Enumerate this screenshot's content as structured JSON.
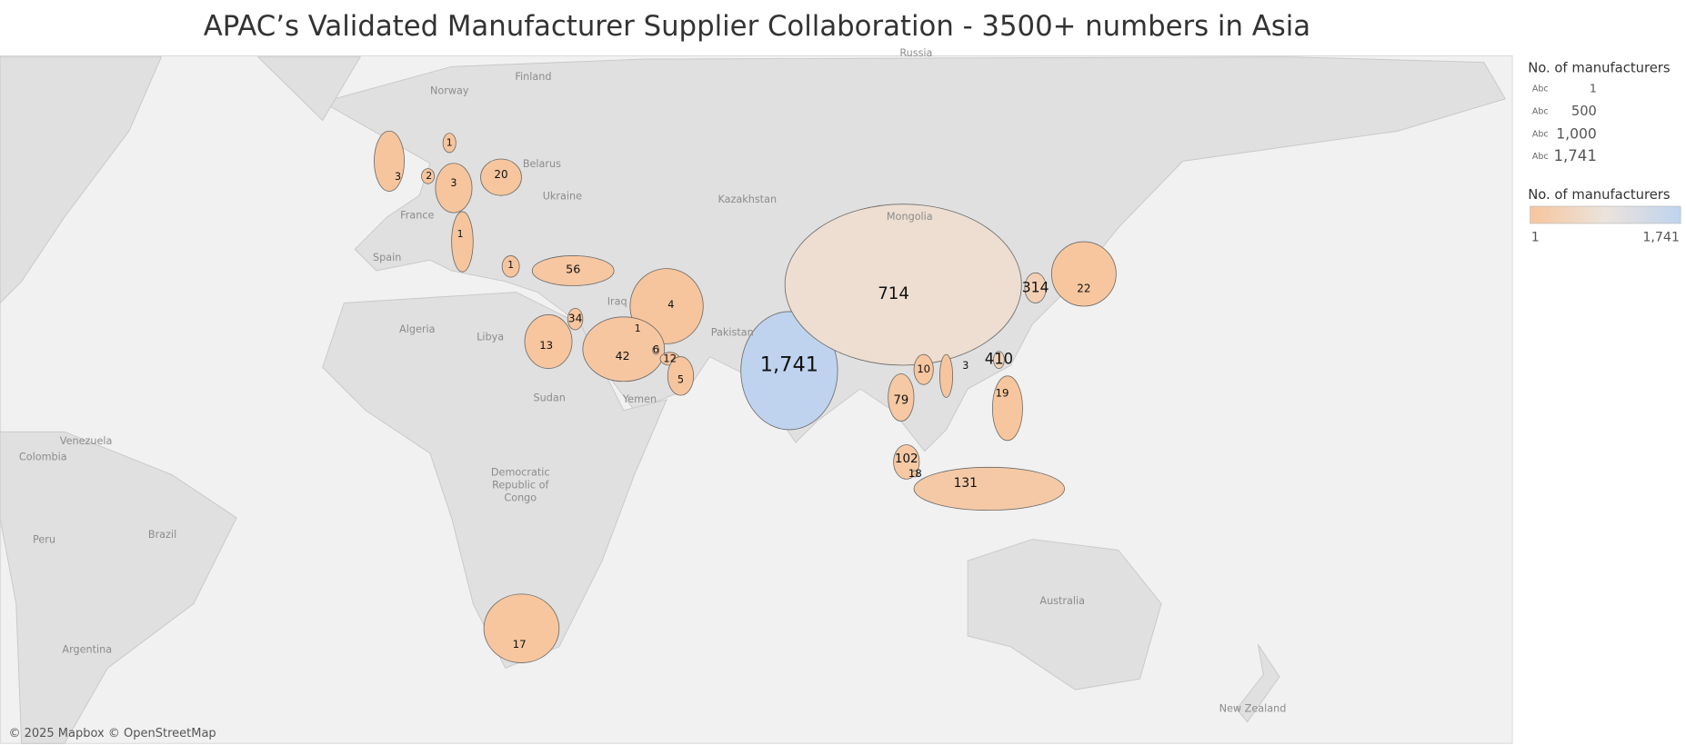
{
  "title": "APAC’s Validated Manufacturer Supplier Collaboration - 3500+ numbers in Asia",
  "map": {
    "type": "choropleth",
    "values": [
      3,
      1,
      2,
      3,
      20,
      1,
      1,
      56,
      34,
      4,
      1,
      13,
      42,
      6,
      12,
      5,
      1741,
      714,
      314,
      22,
      410,
      10,
      3,
      79,
      19,
      102,
      18,
      131,
      17
    ],
    "value_labels": [
      "3",
      "1",
      "2",
      "3",
      "20",
      "1",
      "1",
      "56",
      "34",
      "4",
      "1",
      "13",
      "42",
      "6",
      "12",
      "5",
      "1,741",
      "714",
      "314",
      "22",
      "410",
      "10",
      "3",
      "79",
      "19",
      "102",
      "18",
      "131",
      "17"
    ],
    "basemap_labels": [
      "Russia",
      "Finland",
      "Norway",
      "Belarus",
      "Ukraine",
      "Kazakhstan",
      "Mongolia",
      "France",
      "Spain",
      "Algeria",
      "Libya",
      "Iraq",
      "Pakistan",
      "Sudan",
      "Yemen",
      "Venezuela",
      "Colombia",
      "Democratic Republic of Congo",
      "Brazil",
      "Peru",
      "Argentina",
      "Australia",
      "New Zealand"
    ],
    "attribution": "© 2025 Mapbox © OpenStreetMap"
  },
  "legend": {
    "size": {
      "title": "No. of manufacturers",
      "sample": "Abc",
      "values": [
        1,
        500,
        1000,
        1741
      ],
      "labels": [
        "1",
        "500",
        "1,000",
        "1,741"
      ]
    },
    "color": {
      "title": "No. of manufacturers",
      "range": [
        1,
        1741
      ],
      "labels": [
        "1",
        "1,741"
      ],
      "colors": [
        "#f7c59d",
        "#ebe3dc",
        "#bfd3ef"
      ]
    }
  }
}
